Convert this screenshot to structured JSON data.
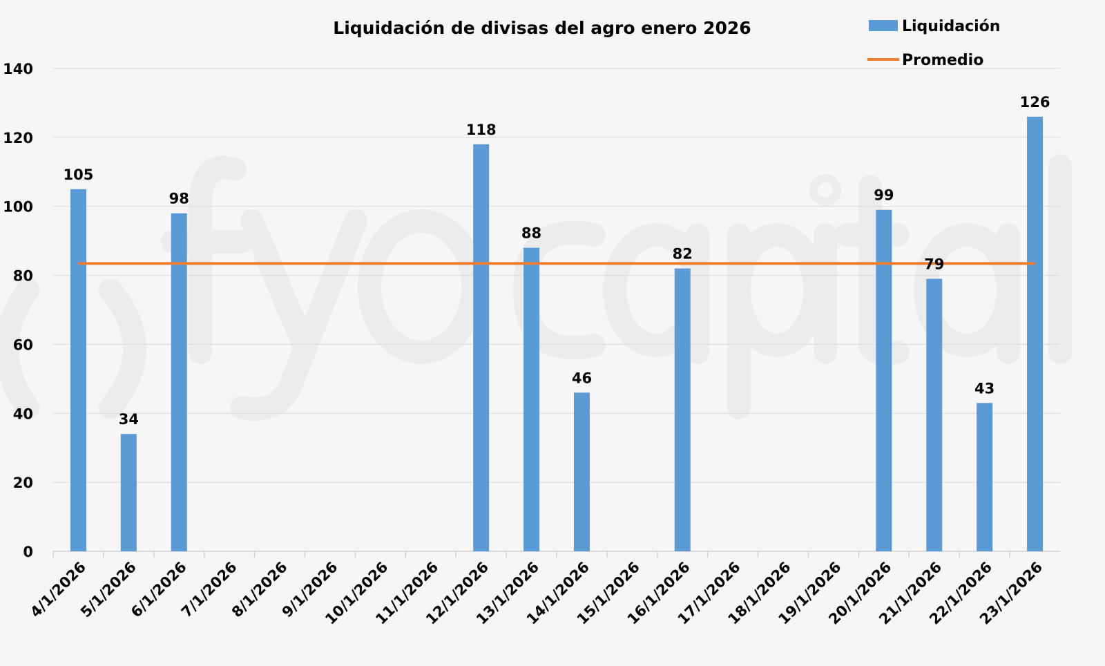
{
  "chart_data": {
    "type": "bar",
    "title": "Liquidación de divisas del agro enero 2026",
    "xlabel": "",
    "ylabel": "",
    "ylim": [
      0,
      140
    ],
    "yticks": [
      0,
      20,
      40,
      60,
      80,
      100,
      120,
      140
    ],
    "grid": true,
    "legend_position": "top-right",
    "categories": [
      "4/1/2026",
      "5/1/2026",
      "6/1/2026",
      "7/1/2026",
      "8/1/2026",
      "9/1/2026",
      "10/1/2026",
      "11/1/2026",
      "12/1/2026",
      "13/1/2026",
      "14/1/2026",
      "15/1/2026",
      "16/1/2026",
      "17/1/2026",
      "18/1/2026",
      "19/1/2026",
      "20/1/2026",
      "21/1/2026",
      "22/1/2026",
      "23/1/2026"
    ],
    "series": [
      {
        "name": "Liquidación",
        "type": "bar",
        "color": "#5b9bd5",
        "values": [
          105,
          34,
          98,
          null,
          null,
          null,
          null,
          null,
          118,
          88,
          46,
          null,
          82,
          null,
          null,
          null,
          99,
          79,
          43,
          126
        ]
      },
      {
        "name": "Promedio",
        "type": "line",
        "color": "#ed7d31",
        "value": 83.45
      }
    ],
    "watermark": "fyocapital"
  }
}
